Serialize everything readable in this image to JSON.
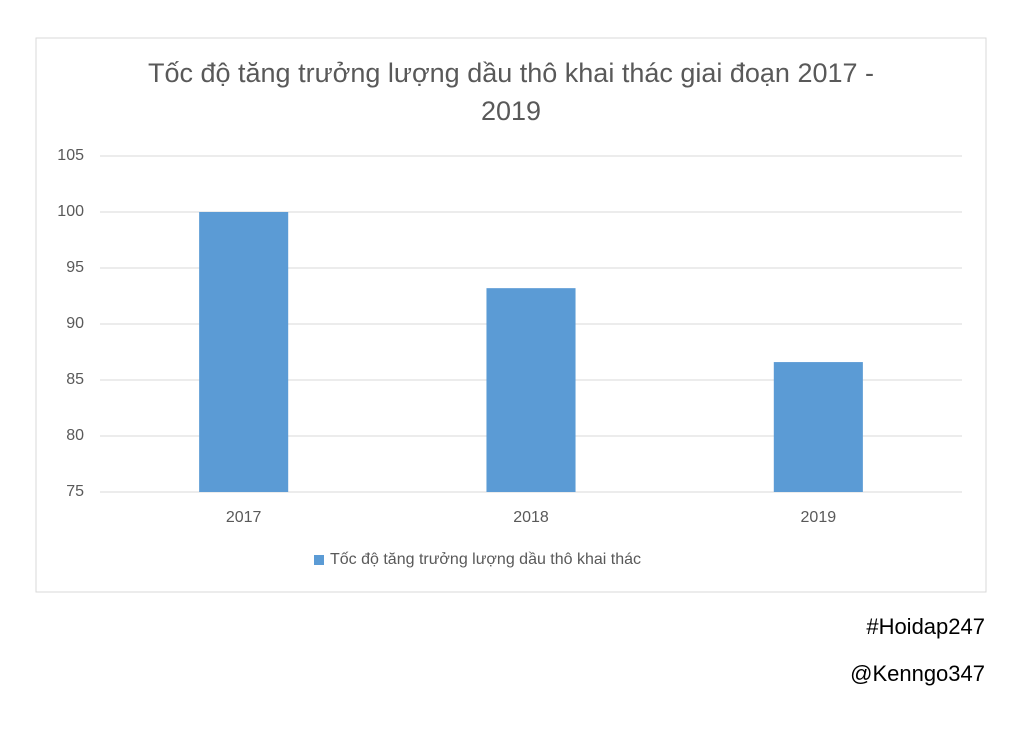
{
  "chart_data": {
    "type": "bar",
    "title": "Tốc độ tăng trưởng lượng dầu thô khai thác giai đoạn 2017 - 2019",
    "categories": [
      "2017",
      "2018",
      "2019"
    ],
    "series": [
      {
        "name": "Tốc độ tăng trưởng lượng dầu thô khai thác",
        "color": "#5b9bd5",
        "values": [
          100,
          93.2,
          86.6
        ]
      }
    ],
    "ylim": [
      75,
      105
    ],
    "yticks": [
      75,
      80,
      85,
      90,
      95,
      100,
      105
    ],
    "grid": true,
    "legend": "bottom",
    "annotations": [
      "#Hoidap247",
      "@Kenngo347"
    ]
  }
}
